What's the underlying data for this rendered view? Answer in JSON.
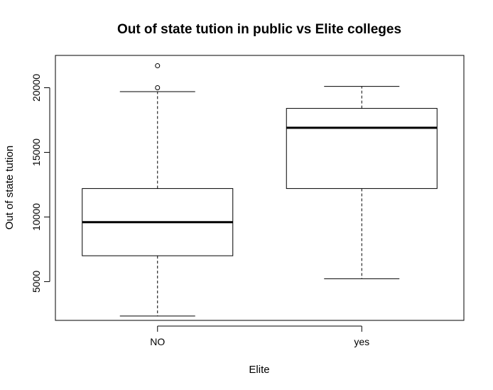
{
  "chart_data": {
    "type": "box",
    "title": "Out of state tution in public vs Elite colleges",
    "xlabel": "Elite",
    "ylabel": "Out of state tution",
    "categories": [
      "NO",
      "yes"
    ],
    "ylim": [
      2000,
      22500
    ],
    "yticks": [
      5000,
      10000,
      15000,
      20000
    ],
    "yticklabels": [
      "5000",
      "10000",
      "15000",
      "20000"
    ],
    "grid": false,
    "boxes": [
      {
        "category": "NO",
        "whisker_low": 2340,
        "q1": 7000,
        "median": 9600,
        "q3": 12200,
        "whisker_high": 19700,
        "outliers": [
          20000,
          21700
        ]
      },
      {
        "category": "yes",
        "whisker_low": 5224,
        "q1": 12200,
        "median": 16900,
        "q3": 18400,
        "whisker_high": 20100,
        "outliers": []
      }
    ]
  }
}
